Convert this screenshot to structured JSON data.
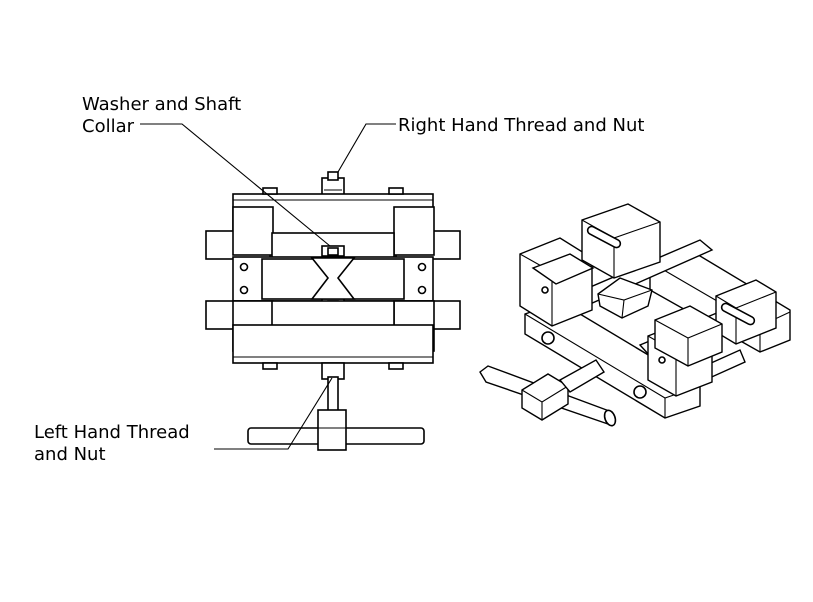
{
  "callouts": {
    "washer": [
      "Washer and Shaft",
      "Collar"
    ],
    "right_thread": "Right Hand Thread and Nut",
    "left_thread": [
      "Left Hand Thread",
      "and Nut"
    ]
  }
}
